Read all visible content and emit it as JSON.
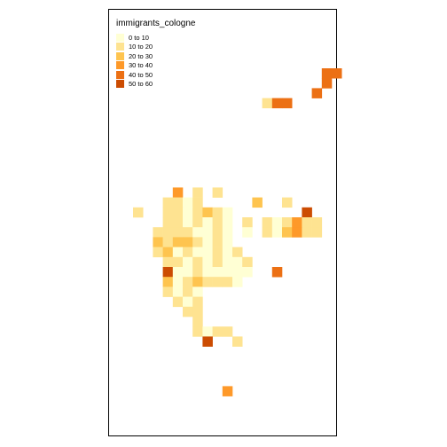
{
  "map": {
    "title": "immigrants_cologne",
    "legend": [
      {
        "label": "0 to 10",
        "color": "#ffffd4"
      },
      {
        "label": "10 to 20",
        "color": "#fee391"
      },
      {
        "label": "20 to 30",
        "color": "#fec44f"
      },
      {
        "label": "30 to 40",
        "color": "#fe9929"
      },
      {
        "label": "40 to 50",
        "color": "#ec7014"
      },
      {
        "label": "50 to 60",
        "color": "#cc4c02"
      }
    ]
  }
}
